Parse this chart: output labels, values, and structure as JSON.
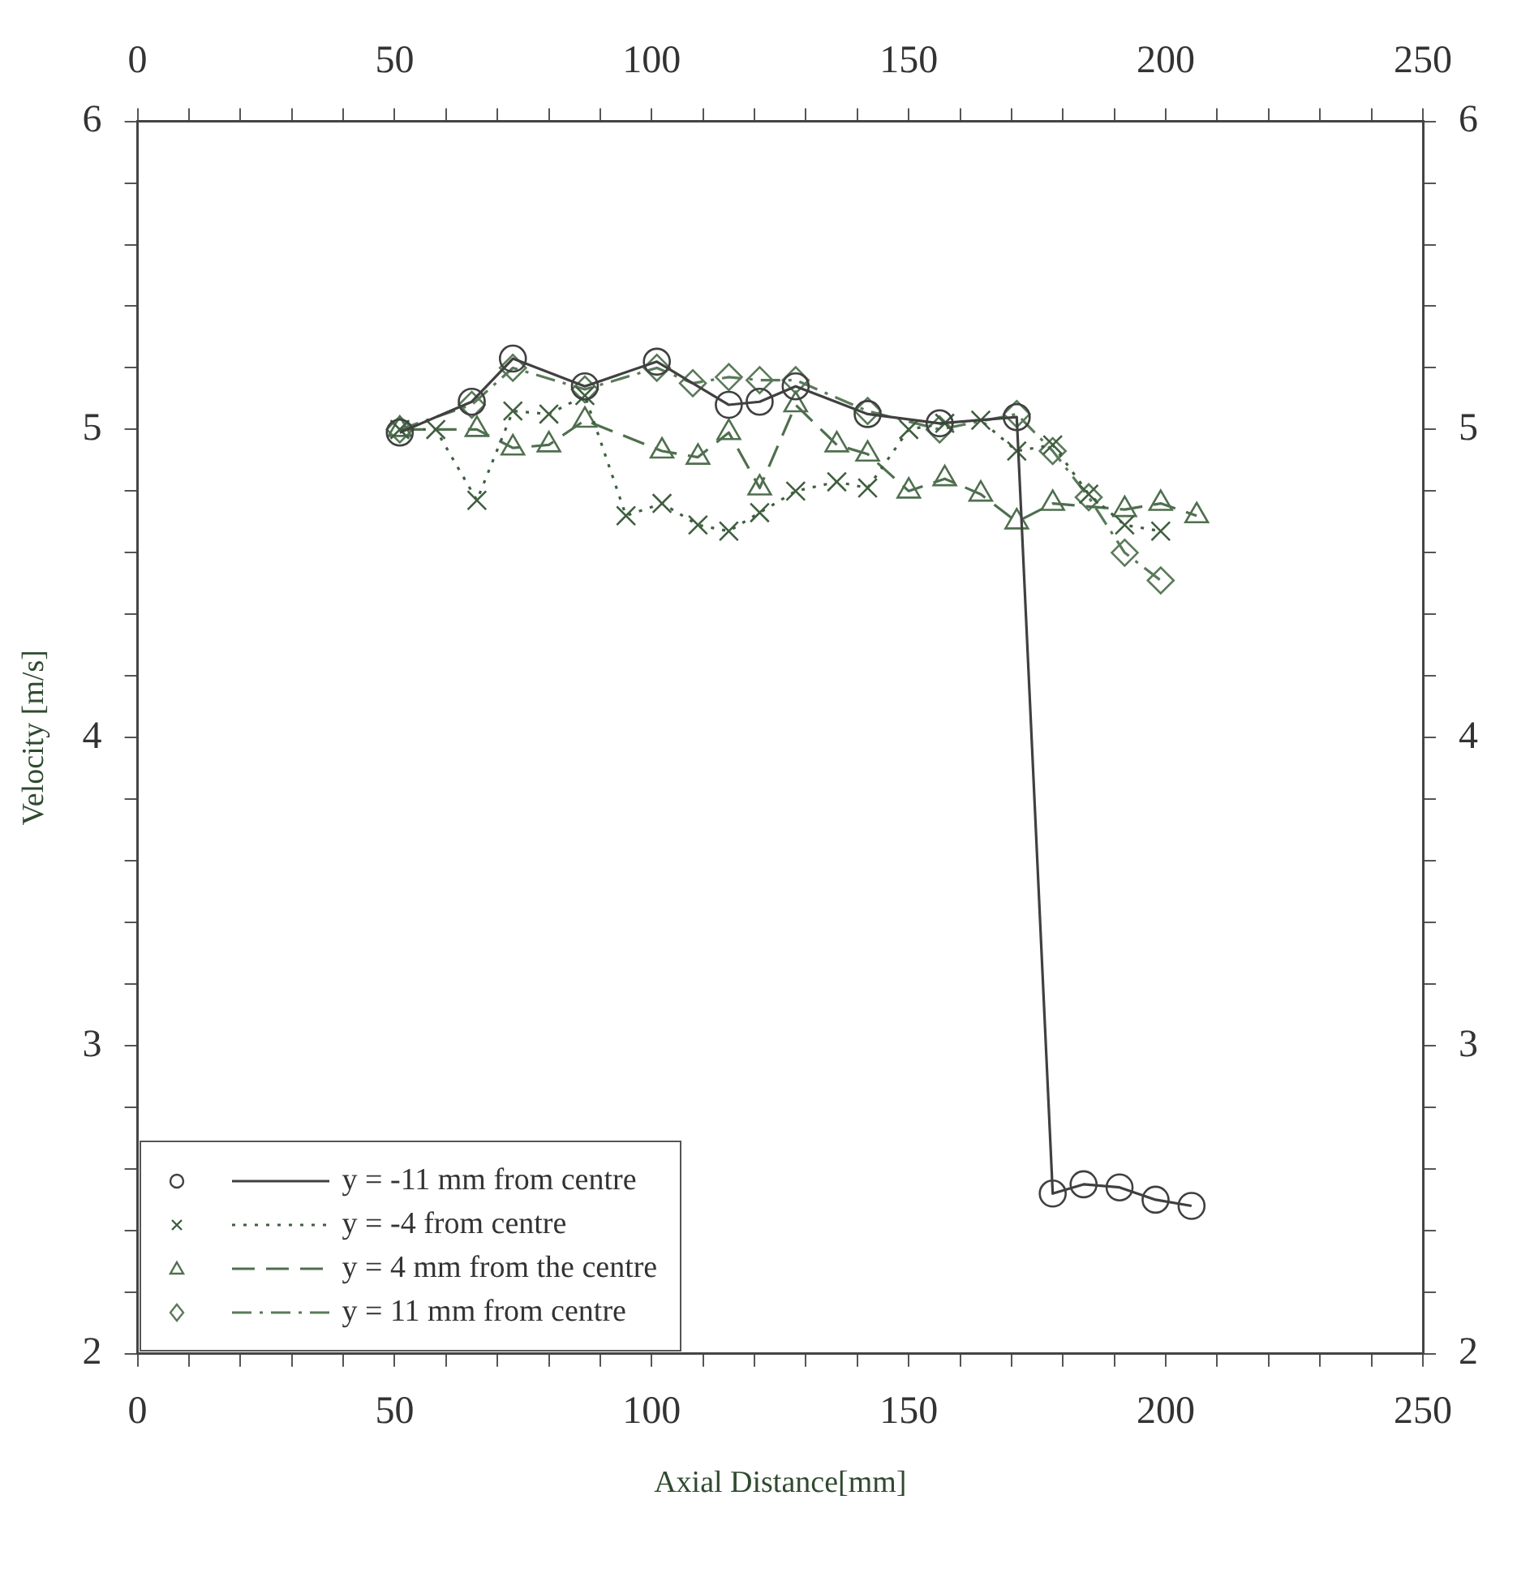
{
  "chart_data": {
    "type": "line",
    "xlabel": "Axial Distance[mm]",
    "ylabel": "Velocity [m/s]",
    "xlim": [
      0,
      250
    ],
    "xticks": [
      0,
      {
        "value": 10,
        "label": null
      },
      {
        "value": 20,
        "label": null
      },
      {
        "value": 30,
        "label": null
      },
      {
        "value": 40,
        "label": null
      },
      50,
      {
        "value": 60,
        "label": null
      },
      {
        "value": 70,
        "label": null
      },
      {
        "value": 80,
        "label": null
      },
      {
        "value": 90,
        "label": null
      },
      100,
      {
        "value": 110,
        "label": null
      },
      {
        "value": 120,
        "label": null
      },
      {
        "value": 130,
        "label": null
      },
      {
        "value": 140,
        "label": null
      },
      150,
      {
        "value": 160,
        "label": null
      },
      {
        "value": 170,
        "label": null
      },
      {
        "value": 180,
        "label": null
      },
      {
        "value": 190,
        "label": null
      },
      200,
      {
        "value": 210,
        "label": null
      },
      {
        "value": 220,
        "label": null
      },
      {
        "value": 230,
        "label": null
      },
      {
        "value": 240,
        "label": null
      },
      250
    ],
    "x2lim": [
      0,
      250
    ],
    "x2ticks": [
      0,
      {
        "value": 10,
        "label": null
      },
      {
        "value": 20,
        "label": null
      },
      {
        "value": 30,
        "label": null
      },
      {
        "value": 40,
        "label": null
      },
      50,
      {
        "value": 60,
        "label": null
      },
      {
        "value": 70,
        "label": null
      },
      {
        "value": 80,
        "label": null
      },
      {
        "value": 90,
        "label": null
      },
      100,
      {
        "value": 110,
        "label": null
      },
      {
        "value": 120,
        "label": null
      },
      {
        "value": 130,
        "label": null
      },
      {
        "value": 140,
        "label": null
      },
      150,
      {
        "value": 160,
        "label": null
      },
      {
        "value": 170,
        "label": null
      },
      {
        "value": 180,
        "label": null
      },
      {
        "value": 190,
        "label": null
      },
      200,
      {
        "value": 210,
        "label": null
      },
      {
        "value": 220,
        "label": null
      },
      {
        "value": 230,
        "label": null
      },
      {
        "value": 240,
        "label": null
      },
      250
    ],
    "ylim": [
      2,
      6
    ],
    "yticks": [
      2,
      {
        "value": 2.2,
        "label": null
      },
      {
        "value": 2.4,
        "label": null
      },
      {
        "value": 2.6,
        "label": null
      },
      {
        "value": 2.8,
        "label": null
      },
      3,
      {
        "value": 3.2,
        "label": null
      },
      {
        "value": 3.4,
        "label": null
      },
      {
        "value": 3.6,
        "label": null
      },
      {
        "value": 3.8,
        "label": null
      },
      4,
      {
        "value": 4.2,
        "label": null
      },
      {
        "value": 4.4,
        "label": null
      },
      {
        "value": 4.6,
        "label": null
      },
      {
        "value": 4.8,
        "label": null
      },
      5,
      {
        "value": 5.2,
        "label": null
      },
      {
        "value": 5.4,
        "label": null
      },
      {
        "value": 5.6,
        "label": null
      },
      {
        "value": 5.8,
        "label": null
      },
      6
    ],
    "y2lim": [
      2,
      6
    ],
    "y2ticks": [
      2,
      {
        "value": 2.2,
        "label": null
      },
      {
        "value": 2.4,
        "label": null
      },
      {
        "value": 2.6,
        "label": null
      },
      {
        "value": 2.8,
        "label": null
      },
      3,
      {
        "value": 3.2,
        "label": null
      },
      {
        "value": 3.4,
        "label": null
      },
      {
        "value": 3.6,
        "label": null
      },
      {
        "value": 3.8,
        "label": null
      },
      4,
      {
        "value": 4.2,
        "label": null
      },
      {
        "value": 4.4,
        "label": null
      },
      {
        "value": 4.6,
        "label": null
      },
      {
        "value": 4.8,
        "label": null
      },
      5,
      {
        "value": 5.2,
        "label": null
      },
      {
        "value": 5.4,
        "label": null
      },
      {
        "value": 5.6,
        "label": null
      },
      {
        "value": 5.8,
        "label": null
      },
      6
    ],
    "grid": false,
    "legend": "bottom left",
    "series": [
      {
        "name": "y = -11 mm from centre",
        "color": "#404040",
        "marker": "circle",
        "line_style": "solid",
        "x": [
          51,
          65,
          73,
          87,
          101,
          115,
          121,
          128,
          142,
          156,
          171,
          178,
          184,
          191,
          198,
          205
        ],
        "values": [
          4.99,
          5.09,
          5.23,
          5.14,
          5.22,
          5.08,
          5.09,
          5.14,
          5.05,
          5.02,
          5.04,
          2.52,
          2.55,
          2.54,
          2.5,
          2.48
        ]
      },
      {
        "name": "y = -4 from centre",
        "color": "#3f5f3f",
        "marker": "cross",
        "line_style": "dotted",
        "x": [
          51,
          58,
          66,
          73,
          80,
          87,
          95,
          102,
          109,
          115,
          121,
          128,
          136,
          142,
          150,
          157,
          164,
          171,
          178,
          185,
          192,
          199
        ],
        "values": [
          5.0,
          5.0,
          4.77,
          5.06,
          5.05,
          5.11,
          4.72,
          4.76,
          4.69,
          4.67,
          4.73,
          4.8,
          4.83,
          4.81,
          5.0,
          5.02,
          5.03,
          4.93,
          4.95,
          4.79,
          4.69,
          4.67
        ]
      },
      {
        "name": "y = 4 mm from the centre",
        "color": "#4f6f4f",
        "marker": "triangle",
        "line_style": "dashed",
        "x": [
          51,
          66,
          73,
          80,
          87,
          102,
          109,
          115,
          121,
          128,
          136,
          142,
          150,
          157,
          164,
          171,
          178,
          192,
          199,
          206
        ],
        "values": [
          5.0,
          5.0,
          4.94,
          4.95,
          5.03,
          4.93,
          4.91,
          4.99,
          4.81,
          5.08,
          4.95,
          4.92,
          4.8,
          4.84,
          4.79,
          4.7,
          4.76,
          4.74,
          4.76,
          4.72
        ]
      },
      {
        "name": "y = 11 mm from centre",
        "color": "#5a7a5a",
        "marker": "diamond",
        "line_style": "dashdot",
        "x": [
          51,
          65,
          73,
          87,
          101,
          108,
          115,
          121,
          128,
          142,
          156,
          171,
          178,
          185,
          192,
          199
        ],
        "values": [
          5.0,
          5.08,
          5.2,
          5.13,
          5.2,
          5.15,
          5.17,
          5.16,
          5.16,
          5.06,
          5.0,
          5.05,
          4.93,
          4.78,
          4.6,
          4.51
        ]
      }
    ]
  }
}
